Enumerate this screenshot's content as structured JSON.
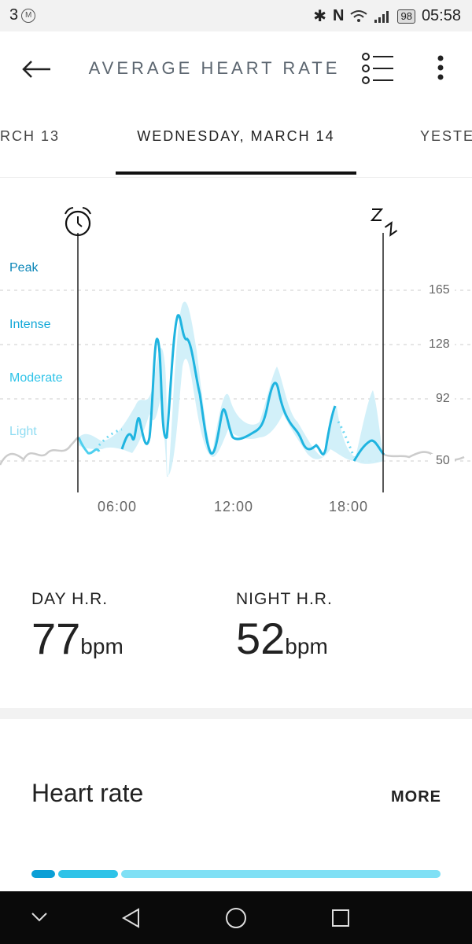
{
  "status_bar": {
    "left_text": "3",
    "carrier_badge": "M",
    "battery": "98",
    "time": "05:58"
  },
  "header": {
    "title": "AVERAGE HEART RATE"
  },
  "date_nav": {
    "prev": "RCH 13",
    "current": "WEDNESDAY, MARCH 14",
    "next": "YESTE"
  },
  "chart_data": {
    "type": "line",
    "zones": [
      "Peak",
      "Intense",
      "Moderate",
      "Light"
    ],
    "y_ticks": [
      165,
      128,
      92,
      50
    ],
    "x_ticks": [
      "06:00",
      "12:00",
      "18:00"
    ],
    "markers": {
      "wake": "alarm-clock-icon",
      "sleep": "sleep-zz-icon"
    },
    "colors": {
      "peak": "#0b86b8",
      "intense": "#13a8d8",
      "moderate": "#2ec3e8",
      "light": "#8fdcf2",
      "band": "#cdeef8"
    }
  },
  "stats": {
    "day_label": "DAY H.R.",
    "day_value": "77",
    "night_label": "NIGHT H.R.",
    "night_value": "52",
    "unit": "bpm"
  },
  "card": {
    "title": "Heart rate",
    "more": "MORE"
  }
}
